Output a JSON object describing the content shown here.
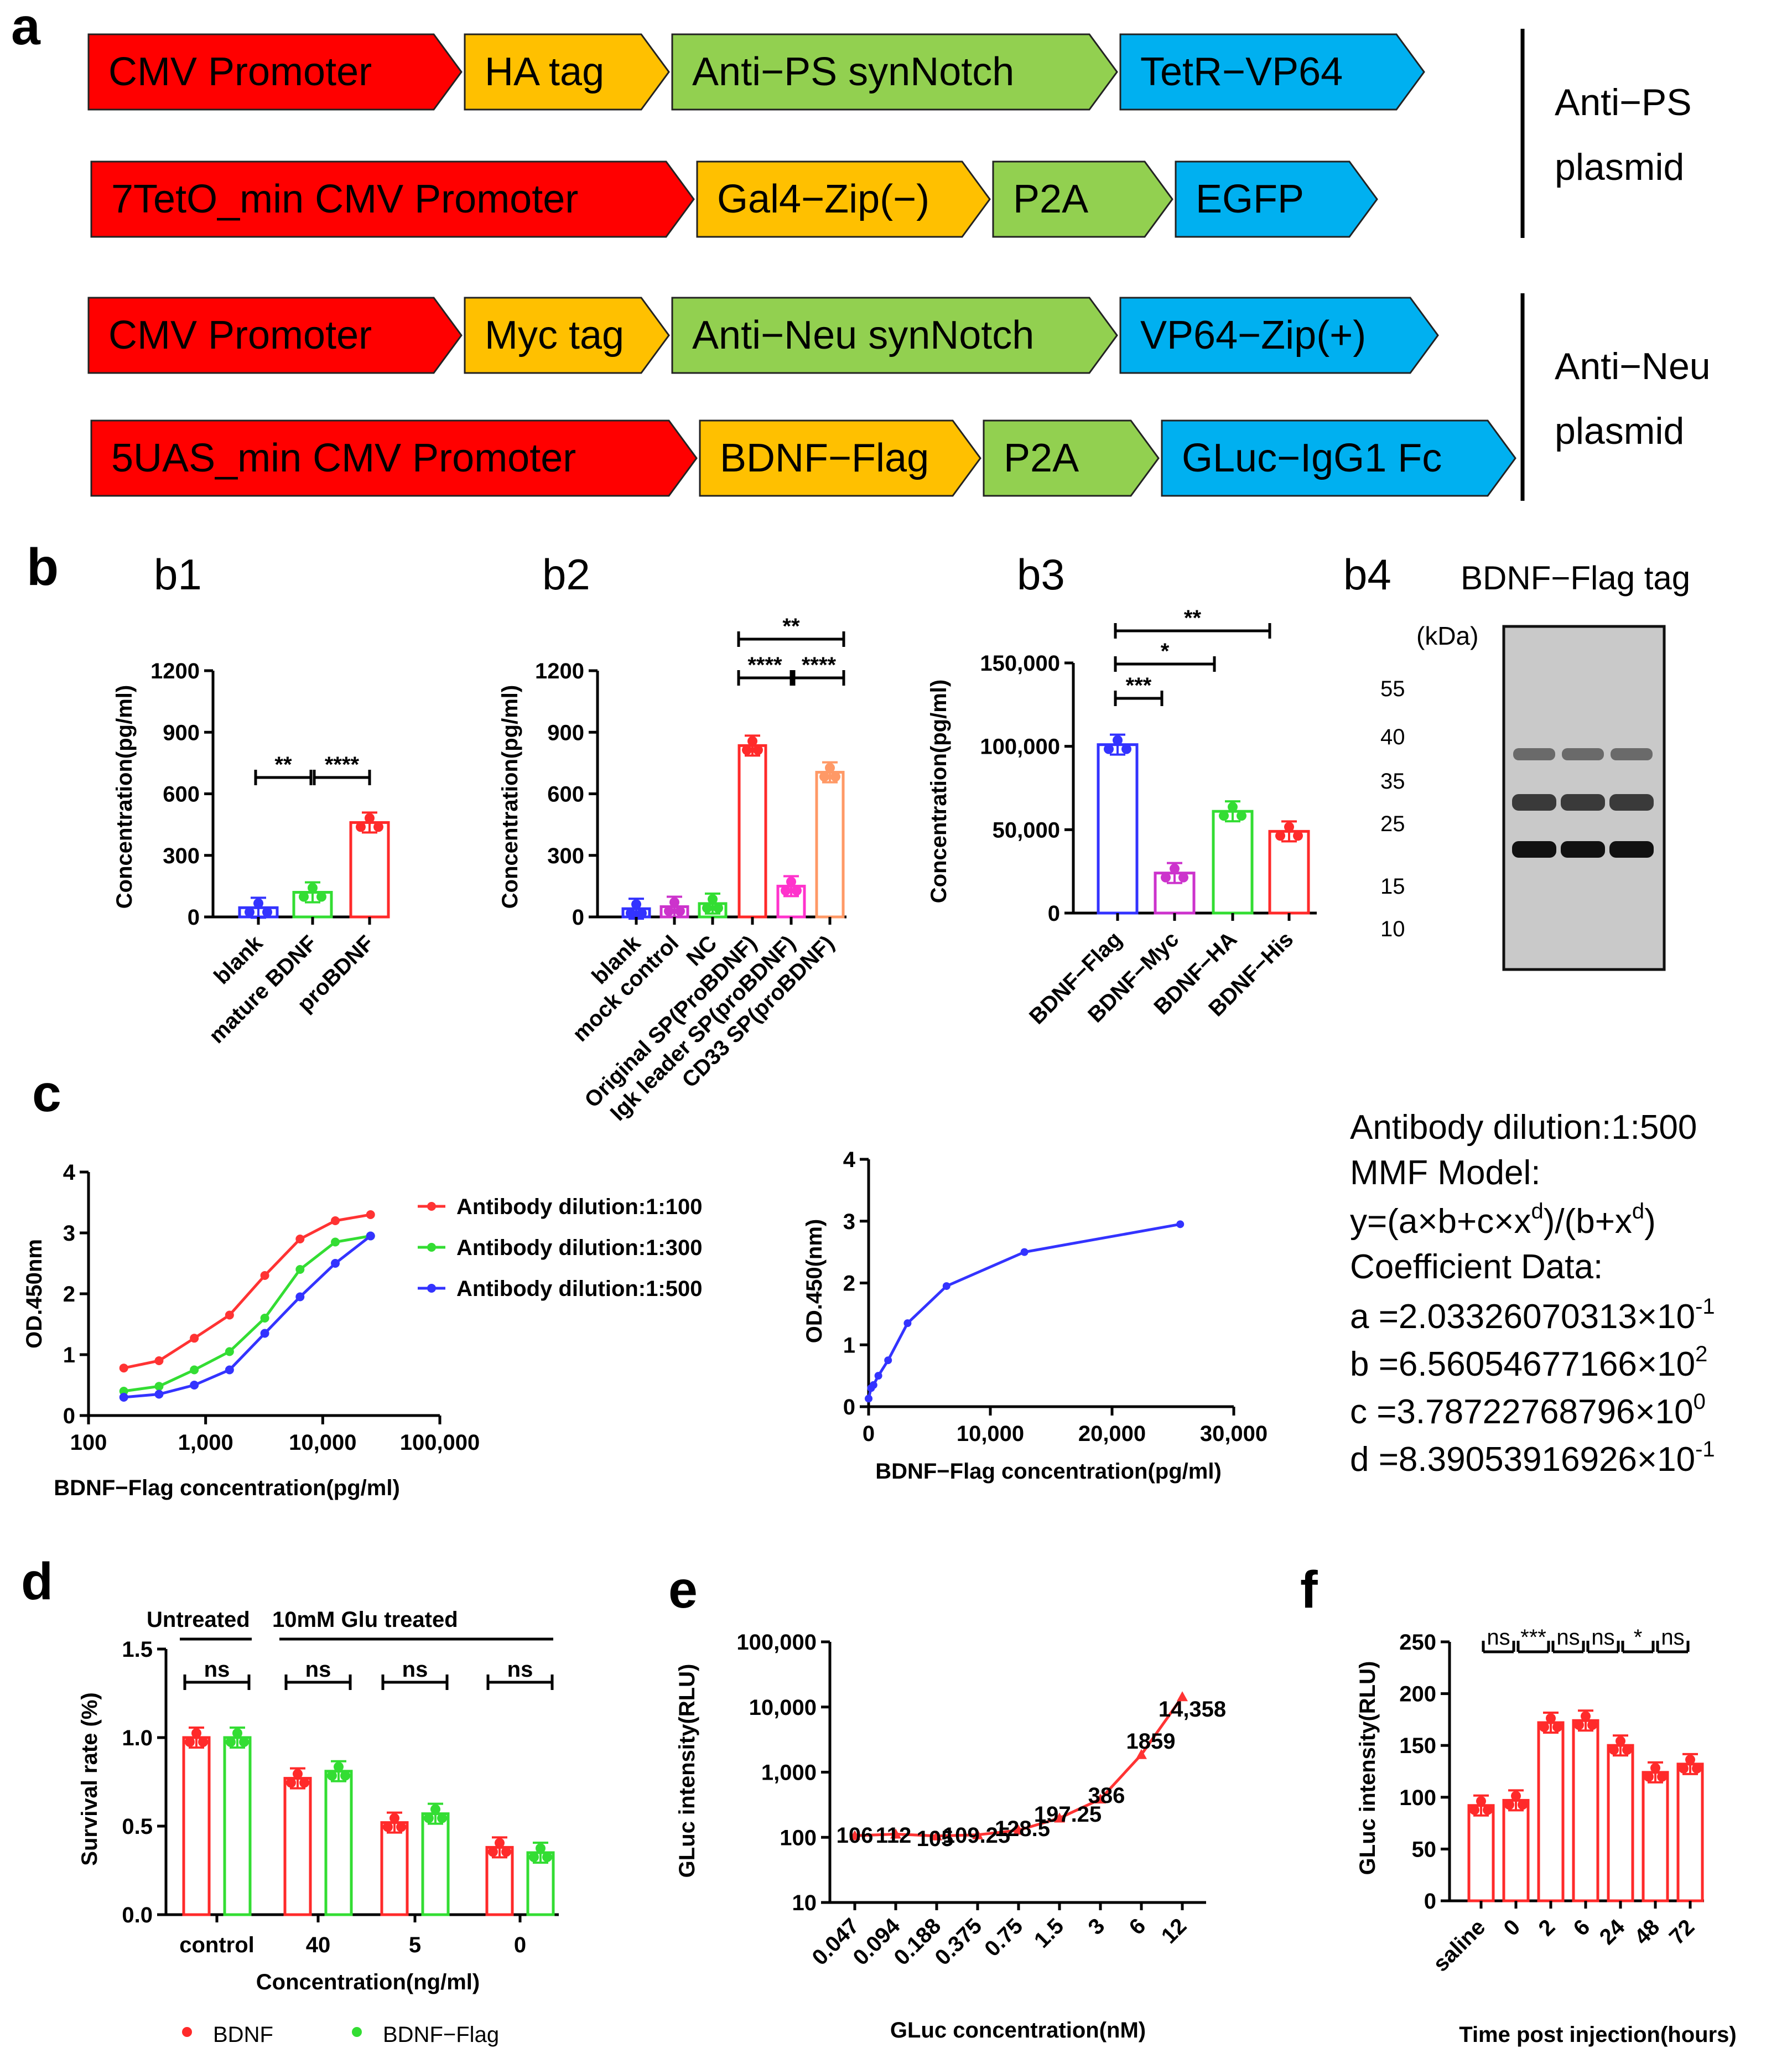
{
  "panels": {
    "a": "a",
    "b": "b",
    "c": "c",
    "d": "d",
    "e": "e",
    "f": "f"
  },
  "constructs": [
    {
      "blocks": [
        "CMV Promoter",
        "HA tag",
        "Anti−PS synNotch",
        "TetR−VP64"
      ]
    },
    {
      "blocks": [
        "7TetO_min CMV Promoter",
        "Gal4−Zip(−)",
        "P2A",
        "EGFP"
      ]
    },
    {
      "blocks": [
        "CMV Promoter",
        "Myc tag",
        "Anti−Neu synNotch",
        "VP64−Zip(+)"
      ]
    },
    {
      "blocks": [
        "5UAS_min CMV Promoter",
        "BDNF−Flag",
        "P2A",
        "GLuc−IgG1 Fc"
      ]
    }
  ],
  "plasmid_labels": {
    "ps": [
      "Anti−PS",
      "plasmid"
    ],
    "neu": [
      "Anti−Neu",
      "plasmid"
    ]
  },
  "colors": {
    "red": "#ff0000",
    "orange": "#ffc000",
    "green": "#92d050",
    "blue": "#00b0f0",
    "bar_blue": "#3333ff",
    "bar_green": "#33dd33",
    "bar_red": "#ff2a2a",
    "bar_magenta": "#cc33cc",
    "bar_pink": "#ff33cc",
    "bar_orange": "#ff9966",
    "line_blue": "#3333ff"
  },
  "subpanels": {
    "b1": "b1",
    "b2": "b2",
    "b3": "b3",
    "b4": "b4"
  },
  "blot": {
    "title": "BDNF−Flag tag",
    "unit": "(kDa)",
    "markers": [
      "55",
      "40",
      "35",
      "25",
      "15",
      "10"
    ]
  },
  "b4_legend": [],
  "chart_data": [
    {
      "id": "b1",
      "type": "bar",
      "categories": [
        "blank",
        "mature BDNF",
        "proBDNF"
      ],
      "values": [
        45,
        120,
        460
      ],
      "ylabel": "Concentration(pg/ml)",
      "ylim": [
        0,
        1200
      ],
      "yticks": [
        "0",
        "300",
        "600",
        "900",
        "1200"
      ],
      "sig": [
        "**",
        "****"
      ]
    },
    {
      "id": "b2",
      "type": "bar",
      "categories": [
        "blank",
        "mock control",
        "NC",
        "Original SP(ProBDNF)",
        "Igk leader SP(proBDNF)",
        "CD33 SP(proBDNF)"
      ],
      "values": [
        40,
        50,
        65,
        835,
        150,
        705
      ],
      "ylabel": "Concentration(pg/ml)",
      "ylim": [
        0,
        1200
      ],
      "yticks": [
        "0",
        "300",
        "600",
        "900",
        "1200"
      ],
      "sig": [
        "**",
        "****",
        "****"
      ]
    },
    {
      "id": "b3",
      "type": "bar",
      "categories": [
        "BDNF−Flag",
        "BDNF−Myc",
        "BDNF−HA",
        "BDNF−His"
      ],
      "values": [
        101000,
        24000,
        61000,
        49000
      ],
      "ylabel": "Concentration(pg/ml)",
      "ylim": [
        0,
        150000
      ],
      "yticks": [
        "0",
        "50,000",
        "100,000",
        "150,000"
      ],
      "sig": [
        "**",
        "*",
        "***"
      ]
    },
    {
      "id": "c1",
      "type": "line",
      "x": [
        200,
        400,
        800,
        1600,
        3200,
        6400,
        12800,
        25600
      ],
      "series": [
        {
          "name": "Antibody dilution:1:100",
          "values": [
            0.78,
            0.9,
            1.27,
            1.65,
            2.3,
            2.9,
            3.2,
            3.3
          ]
        },
        {
          "name": "Antibody dilution:1:300",
          "values": [
            0.4,
            0.48,
            0.75,
            1.05,
            1.6,
            2.4,
            2.85,
            2.95
          ]
        },
        {
          "name": "Antibody dilution:1:500",
          "values": [
            0.3,
            0.35,
            0.5,
            0.75,
            1.35,
            1.95,
            2.5,
            2.95
          ]
        }
      ],
      "xlabel": "BDNF−Flag concentration(pg/ml)",
      "ylabel": "OD.450nm",
      "xscale": "log",
      "xticks": [
        "100",
        "1,000",
        "10,000",
        "100,000"
      ],
      "ylim": [
        0,
        4
      ],
      "yticks": [
        "0",
        "1",
        "2",
        "3",
        "4"
      ]
    },
    {
      "id": "c2",
      "type": "line",
      "x": [
        0,
        200,
        400,
        800,
        1600,
        3200,
        6400,
        12800,
        25600
      ],
      "series": [
        {
          "name": "1:500",
          "values": [
            0.13,
            0.3,
            0.35,
            0.5,
            0.75,
            1.35,
            1.95,
            2.5,
            2.95
          ]
        }
      ],
      "xlabel": "BDNF−Flag concentration(pg/ml)",
      "ylabel": "OD.450(nm)",
      "xlim": [
        0,
        30000
      ],
      "xticks": [
        "0",
        "10,000",
        "20,000",
        "30,000"
      ],
      "ylim": [
        0,
        4
      ],
      "yticks": [
        "0",
        "1",
        "2",
        "3",
        "4"
      ]
    },
    {
      "id": "d",
      "type": "bar",
      "categories": [
        "control",
        "40",
        "5",
        "0"
      ],
      "series": [
        {
          "name": "BDNF",
          "values": [
            1.0,
            0.77,
            0.52,
            0.38
          ]
        },
        {
          "name": "BDNF−Flag",
          "values": [
            1.0,
            0.81,
            0.57,
            0.35
          ]
        }
      ],
      "xlabel": "Concentration(ng/ml)",
      "ylabel": "Survival rate (%)",
      "ylim": [
        0,
        1.5
      ],
      "yticks": [
        "0.0",
        "0.5",
        "1.0",
        "1.5"
      ],
      "group_labels": [
        "Untreated",
        "10mM Glu treated"
      ],
      "sig": [
        "ns",
        "ns",
        "ns",
        "ns"
      ],
      "legend": [
        "BDNF",
        "BDNF−Flag"
      ]
    },
    {
      "id": "e",
      "type": "line",
      "categories": [
        "0.047",
        "0.094",
        "0.188",
        "0.375",
        "0.75",
        "1.5",
        "3",
        "6",
        "12"
      ],
      "values": [
        106,
        112,
        105,
        109.25,
        128.5,
        197.25,
        386,
        1859,
        14358
      ],
      "labels": [
        "106",
        "112",
        "105",
        "109.25",
        "128.5",
        "197.25",
        "386",
        "1859",
        "14,358"
      ],
      "xlabel": "GLuc concentration(nM)",
      "ylabel": "GLuc intensity(RLU)",
      "yscale": "log",
      "yticks": [
        "10",
        "100",
        "1,000",
        "10,000",
        "100,000"
      ]
    },
    {
      "id": "f",
      "type": "bar",
      "categories": [
        "saline",
        "0",
        "2",
        "6",
        "24",
        "48",
        "72"
      ],
      "values": [
        92,
        97,
        172,
        174,
        150,
        124,
        132
      ],
      "xlabel": "Time post injection(hours)",
      "ylabel": "GLuc intensity(RLU)",
      "ylim": [
        0,
        250
      ],
      "yticks": [
        "0",
        "50",
        "100",
        "150",
        "200",
        "250"
      ],
      "sig": [
        "ns",
        "***",
        "ns",
        "ns",
        "*",
        "ns"
      ]
    }
  ],
  "equation": {
    "lines": [
      "Antibody dilution:1:500",
      "MMF Model:",
      "y=(a×b+c×x",
      "Coefficient Data:"
    ],
    "coef": [
      "a =2.03326070313×10",
      "b =6.56054677166×10",
      "c =3.78722768796×10",
      "d =8.39053916926×10"
    ],
    "exp": [
      "-1",
      "2",
      "0",
      "-1"
    ]
  }
}
